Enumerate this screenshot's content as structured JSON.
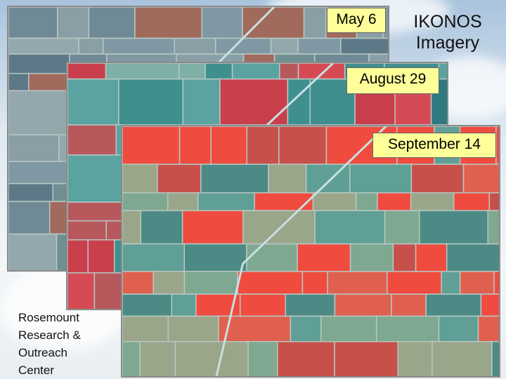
{
  "title": "IKONOS Imagery",
  "images": [
    {
      "label": "May 6"
    },
    {
      "label": "August 29"
    },
    {
      "label": "September 14"
    }
  ],
  "caption": "Rosemount Research & Outreach Center"
}
